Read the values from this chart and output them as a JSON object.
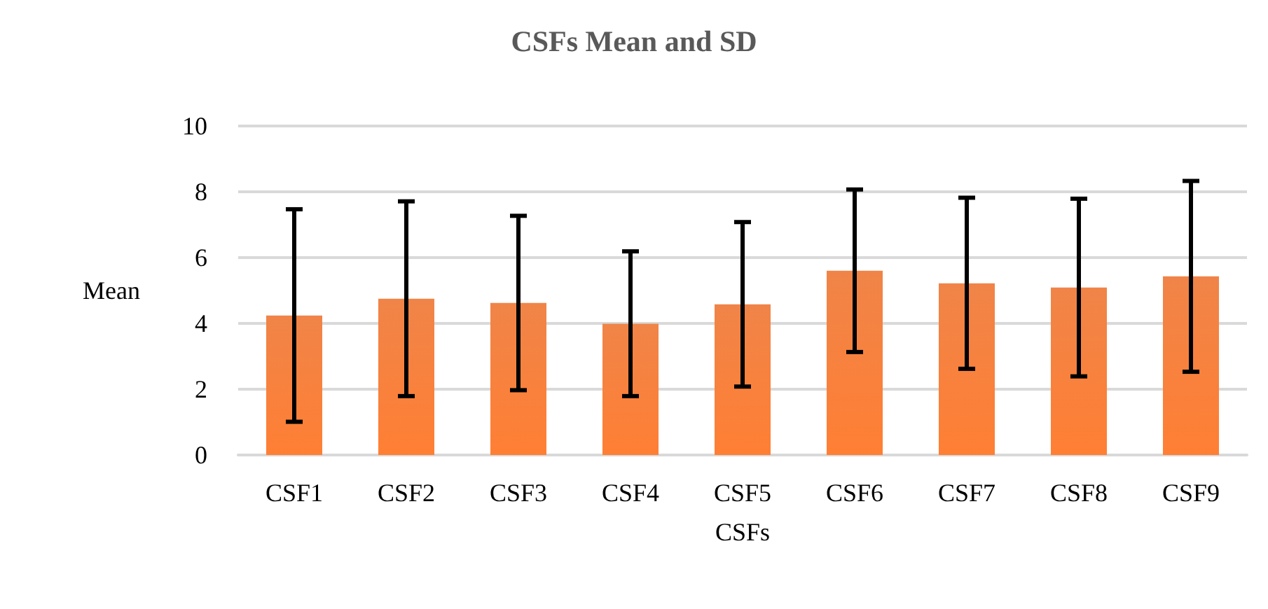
{
  "chart_data": {
    "type": "bar",
    "title": "CSFs Mean and SD",
    "xlabel": "CSFs",
    "ylabel": "Mean",
    "categories": [
      "CSF1",
      "CSF2",
      "CSF3",
      "CSF4",
      "CSF5",
      "CSF6",
      "CSF7",
      "CSF8",
      "CSF9"
    ],
    "values": [
      4.24,
      4.75,
      4.62,
      3.99,
      4.58,
      5.6,
      5.22,
      5.09,
      5.43
    ],
    "errors": [
      3.23,
      2.96,
      2.65,
      2.2,
      2.5,
      2.47,
      2.6,
      2.7,
      2.9
    ],
    "color": "#ee7430",
    "ylim": [
      0,
      10
    ],
    "yticks": [
      0,
      2,
      4,
      6,
      8,
      10
    ],
    "grid": "y"
  }
}
